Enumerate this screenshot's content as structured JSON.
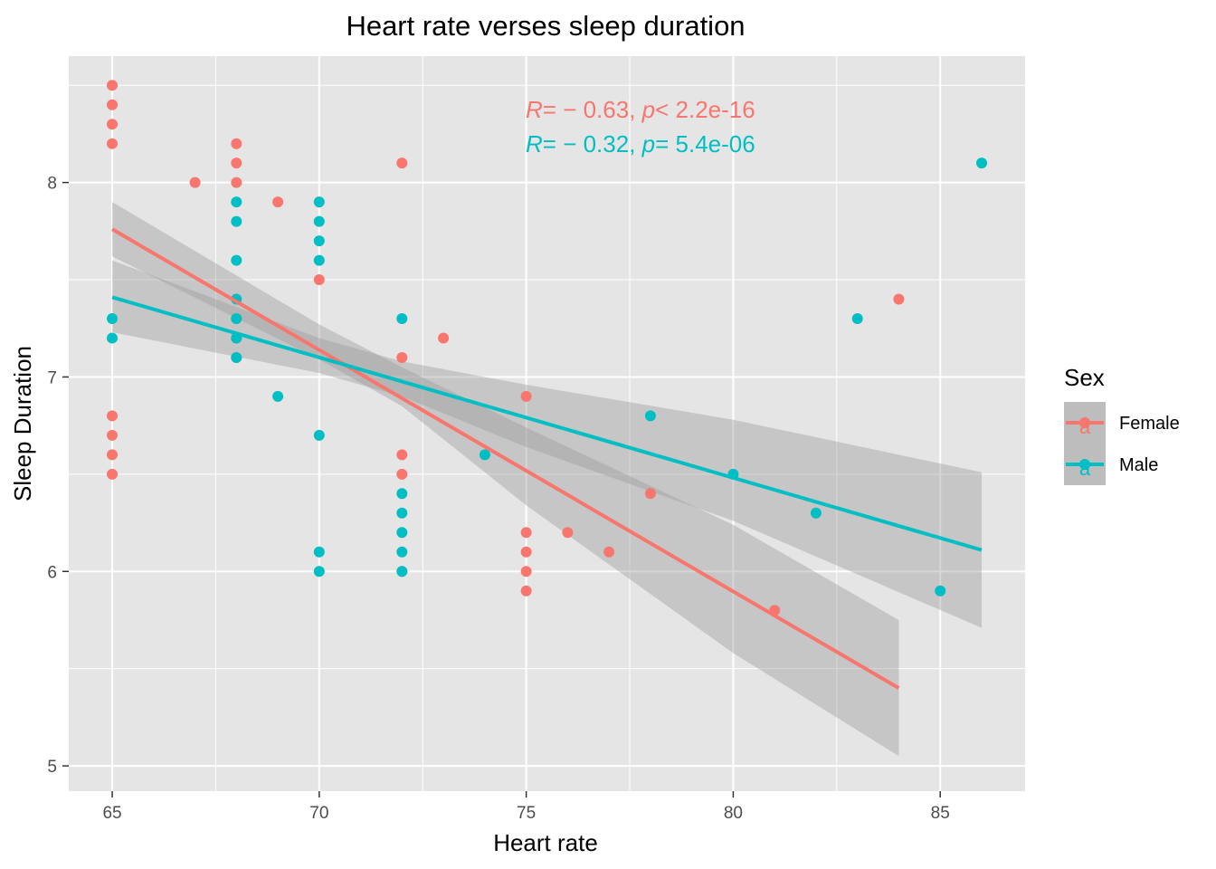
{
  "chart_data": {
    "type": "scatter",
    "title": "Heart rate verses sleep duration",
    "xlabel": "Heart rate",
    "ylabel": "Sleep Duration",
    "xlim": [
      63.95,
      87.05
    ],
    "ylim": [
      4.87,
      8.65
    ],
    "x_ticks": [
      65,
      70,
      75,
      80,
      85
    ],
    "y_ticks": [
      5,
      6,
      7,
      8
    ],
    "x_tick_labels": [
      "65",
      "70",
      "75",
      "80",
      "85"
    ],
    "y_tick_labels": [
      "5",
      "6",
      "7",
      "8"
    ],
    "grid": true,
    "legend": {
      "title": "Sex",
      "position": "right",
      "entries": [
        "Female",
        "Male"
      ],
      "key_glyph": "a"
    },
    "series": [
      {
        "name": "Female",
        "color": "#F8766D",
        "points": [
          [
            65,
            8.5
          ],
          [
            65,
            8.4
          ],
          [
            65,
            8.3
          ],
          [
            65,
            8.2
          ],
          [
            65,
            6.8
          ],
          [
            65,
            6.7
          ],
          [
            65,
            6.6
          ],
          [
            65,
            6.5
          ],
          [
            67,
            8.0
          ],
          [
            68,
            8.2
          ],
          [
            68,
            8.1
          ],
          [
            68,
            8.0
          ],
          [
            68,
            7.3
          ],
          [
            68,
            7.2
          ],
          [
            68,
            7.1
          ],
          [
            69,
            7.9
          ],
          [
            70,
            7.5
          ],
          [
            72,
            8.1
          ],
          [
            72,
            7.1
          ],
          [
            72,
            6.6
          ],
          [
            72,
            6.5
          ],
          [
            72,
            6.0
          ],
          [
            73,
            7.2
          ],
          [
            75,
            6.9
          ],
          [
            75,
            6.2
          ],
          [
            75,
            6.1
          ],
          [
            75,
            6.0
          ],
          [
            75,
            5.9
          ],
          [
            76,
            6.2
          ],
          [
            77,
            6.1
          ],
          [
            78,
            6.4
          ],
          [
            81,
            5.8
          ],
          [
            84,
            7.4
          ]
        ],
        "fit": {
          "x": [
            65,
            84
          ],
          "y": [
            7.76,
            5.4
          ]
        },
        "ci_upper": {
          "x": [
            65,
            70,
            72,
            75,
            80,
            84
          ],
          "y": [
            7.9,
            7.27,
            7.05,
            6.74,
            6.24,
            5.75
          ]
        },
        "ci_lower": {
          "x": [
            65,
            70,
            72,
            75,
            80,
            84
          ],
          "y": [
            7.62,
            7.09,
            6.85,
            6.34,
            5.58,
            5.05
          ]
        },
        "stat": {
          "prefix": "R",
          "r": "= − 0.63, ",
          "p_label": "p",
          "p": "< 2.2e-16"
        }
      },
      {
        "name": "Male",
        "color": "#00BFC4",
        "points": [
          [
            65,
            7.3
          ],
          [
            65,
            7.2
          ],
          [
            68,
            7.9
          ],
          [
            68,
            7.8
          ],
          [
            68,
            7.6
          ],
          [
            68,
            7.4
          ],
          [
            68,
            7.3
          ],
          [
            68,
            7.2
          ],
          [
            68,
            7.1
          ],
          [
            69,
            6.9
          ],
          [
            70,
            7.9
          ],
          [
            70,
            7.8
          ],
          [
            70,
            7.7
          ],
          [
            70,
            7.6
          ],
          [
            70,
            6.7
          ],
          [
            70,
            6.1
          ],
          [
            70,
            6.0
          ],
          [
            72,
            7.3
          ],
          [
            72,
            6.4
          ],
          [
            72,
            6.3
          ],
          [
            72,
            6.2
          ],
          [
            72,
            6.1
          ],
          [
            72,
            6.0
          ],
          [
            74,
            6.6
          ],
          [
            78,
            6.8
          ],
          [
            80,
            6.5
          ],
          [
            82,
            6.3
          ],
          [
            83,
            7.3
          ],
          [
            85,
            5.9
          ],
          [
            86,
            8.1
          ]
        ],
        "fit": {
          "x": [
            65,
            86
          ],
          "y": [
            7.41,
            6.11
          ]
        },
        "ci_upper": {
          "x": [
            65,
            70,
            72,
            75,
            80,
            86
          ],
          "y": [
            7.6,
            7.2,
            7.08,
            6.96,
            6.78,
            6.51
          ]
        },
        "ci_lower": {
          "x": [
            65,
            70,
            72,
            75,
            80,
            86
          ],
          "y": [
            7.23,
            7.02,
            6.9,
            6.64,
            6.26,
            5.71
          ]
        },
        "stat": {
          "prefix": "R",
          "r": "= − 0.32, ",
          "p_label": "p",
          "p": "= 5.4e-06"
        }
      }
    ],
    "colors": {
      "panel": "#E5E5E5",
      "grid": "#FFFFFF",
      "ribbon": "#999999",
      "legend_key_bg": "#BDBDBD"
    }
  }
}
